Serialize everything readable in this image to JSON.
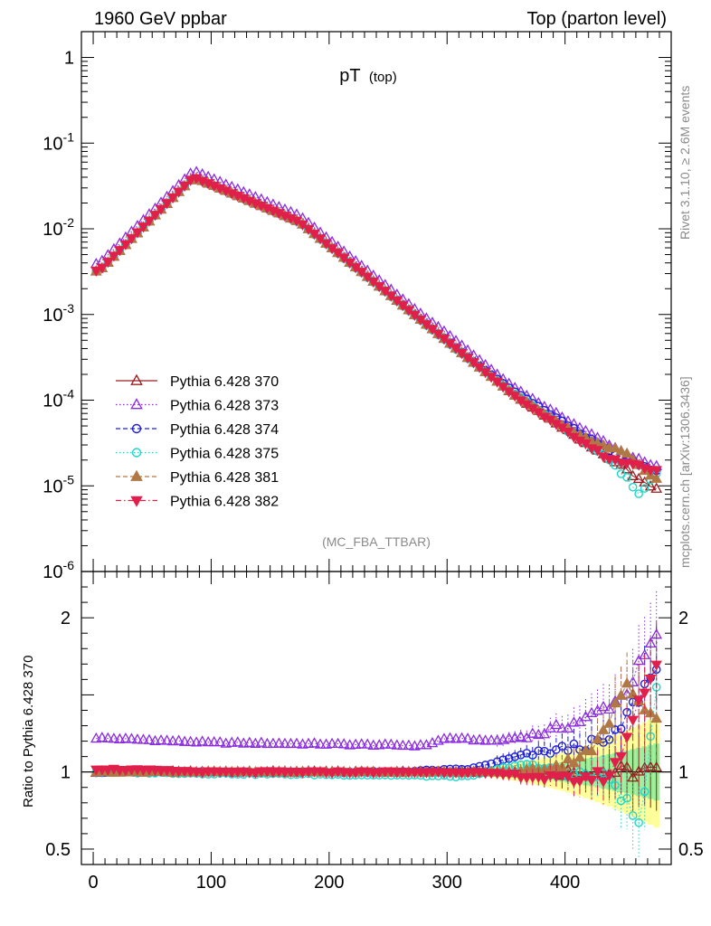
{
  "header": {
    "left": "1960 GeV ppbar",
    "right": "Top (parton level)"
  },
  "side_text": {
    "rivet": "Rivet 3.1.10, ≥ 2.6M events",
    "mcplots": "mcplots.cern.ch [arXiv:1306.3436]"
  },
  "chart_data": {
    "type": "scatter",
    "title_main": "pT",
    "title_sub": "(top)",
    "analysis_label": "(MC_FBA_TTBAR)",
    "ylabel_ratio": "Ratio to Pythia 6.428 370",
    "xlim": [
      -10,
      490
    ],
    "ylim_main": [
      1e-06,
      2
    ],
    "ylim_ratio": [
      0.4,
      2.3
    ],
    "y_scale_main": "log",
    "x_ticks": [
      0,
      100,
      200,
      300,
      400
    ],
    "y_ticks_main": [
      "1",
      "10^-1",
      "10^-2",
      "10^-3",
      "10^-4",
      "10^-5",
      "10^-6"
    ],
    "y_ticks_ratio": [
      "0.5",
      "1",
      "2"
    ],
    "legend_position": "lower-left",
    "reference": {
      "x": [
        5,
        85,
        175,
        265,
        355,
        445,
        475
      ],
      "y": [
        0.0032,
        0.04,
        0.012,
        0.0012,
        0.00012,
        1.8e-05,
        9e-06
      ]
    },
    "series": [
      {
        "name": "Pythia 6.428 370",
        "color": "#9b1c20",
        "marker": "triangle-open",
        "line": "solid",
        "ratio": [
          [
            5,
            1.0
          ],
          [
            100,
            1.0
          ],
          [
            250,
            1.0
          ],
          [
            350,
            1.0
          ],
          [
            420,
            1.0
          ],
          [
            475,
            1.0
          ]
        ]
      },
      {
        "name": "Pythia 6.428 373",
        "color": "#8a2be2",
        "marker": "triangle-open",
        "line": "dotted",
        "ratio": [
          [
            5,
            1.22
          ],
          [
            100,
            1.19
          ],
          [
            200,
            1.18
          ],
          [
            280,
            1.17
          ],
          [
            300,
            1.22
          ],
          [
            340,
            1.2
          ],
          [
            380,
            1.25
          ],
          [
            420,
            1.35
          ],
          [
            450,
            1.5
          ],
          [
            475,
            1.85
          ]
        ]
      },
      {
        "name": "Pythia 6.428 374",
        "color": "#1f1fd6",
        "marker": "circle-open",
        "line": "dashed",
        "ratio": [
          [
            5,
            1.0
          ],
          [
            100,
            1.0
          ],
          [
            250,
            1.0
          ],
          [
            320,
            1.02
          ],
          [
            360,
            1.1
          ],
          [
            400,
            1.15
          ],
          [
            440,
            1.2
          ],
          [
            475,
            1.65
          ]
        ]
      },
      {
        "name": "Pythia 6.428 375",
        "color": "#1ed7c8",
        "marker": "circle-open",
        "line": "dotted",
        "ratio": [
          [
            5,
            1.0
          ],
          [
            100,
            0.99
          ],
          [
            250,
            0.98
          ],
          [
            320,
            0.97
          ],
          [
            360,
            1.05
          ],
          [
            400,
            1.0
          ],
          [
            440,
            0.95
          ],
          [
            465,
            0.63
          ],
          [
            475,
            1.5
          ]
        ]
      },
      {
        "name": "Pythia 6.428 381",
        "color": "#b07845",
        "marker": "triangle-filled",
        "line": "dashed",
        "ratio": [
          [
            5,
            1.0
          ],
          [
            100,
            1.0
          ],
          [
            250,
            1.0
          ],
          [
            320,
            1.0
          ],
          [
            360,
            1.0
          ],
          [
            400,
            1.05
          ],
          [
            430,
            1.2
          ],
          [
            450,
            1.55
          ],
          [
            475,
            1.4
          ]
        ]
      },
      {
        "name": "Pythia 6.428 382",
        "color": "#e0204a",
        "marker": "triangle-down-filled",
        "line": "dashdot",
        "ratio": [
          [
            5,
            1.02
          ],
          [
            100,
            1.0
          ],
          [
            250,
            1.0
          ],
          [
            320,
            1.0
          ],
          [
            360,
            0.98
          ],
          [
            400,
            0.95
          ],
          [
            440,
            0.98
          ],
          [
            475,
            1.7
          ]
        ]
      }
    ]
  }
}
